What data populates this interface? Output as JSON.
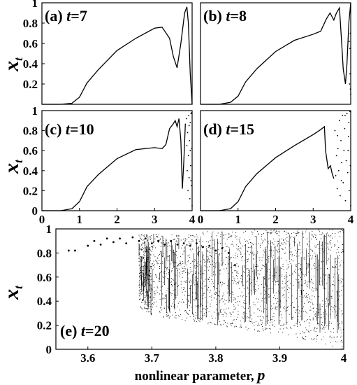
{
  "figure": {
    "xlabel": "nonlinear parameter, ",
    "xlabel_symbol": "p",
    "ylabel_main": "x",
    "ylabel_sub": "t"
  },
  "chart_data": [
    {
      "type": "line",
      "panel_id": "a",
      "label_prefix": "(a) ",
      "label_var": "t",
      "label_value": "=7",
      "xlim": [
        0,
        4
      ],
      "ylim": [
        0,
        1
      ],
      "x_ticks": [],
      "y_ticks": [
        "0.2",
        "0.4",
        "0.6",
        "0.8",
        "1"
      ],
      "x": [
        0,
        0.5,
        0.8,
        1.0,
        1.2,
        1.5,
        2.0,
        2.5,
        3.0,
        3.2,
        3.4,
        3.5,
        3.6,
        3.7,
        3.8,
        3.86,
        3.9,
        3.95,
        4.0
      ],
      "y": [
        0,
        0,
        0.01,
        0.07,
        0.21,
        0.34,
        0.53,
        0.65,
        0.75,
        0.76,
        0.65,
        0.47,
        0.36,
        0.6,
        0.9,
        0.96,
        0.8,
        0.3,
        0
      ]
    },
    {
      "type": "line",
      "panel_id": "b",
      "label_prefix": "(b) ",
      "label_var": "t",
      "label_value": "=8",
      "xlim": [
        0,
        4
      ],
      "ylim": [
        0,
        1
      ],
      "x_ticks": [],
      "y_ticks": [],
      "x": [
        0,
        0.5,
        0.8,
        1.0,
        1.2,
        1.5,
        2.0,
        2.5,
        3.0,
        3.2,
        3.35,
        3.45,
        3.55,
        3.62,
        3.7,
        3.76,
        3.8,
        3.86,
        3.9,
        3.95,
        4.0
      ],
      "y": [
        0,
        0,
        0.02,
        0.08,
        0.22,
        0.35,
        0.52,
        0.63,
        0.69,
        0.72,
        0.84,
        0.9,
        0.83,
        0.9,
        0.95,
        0.6,
        0.35,
        0.2,
        0.4,
        0.8,
        1.0
      ],
      "scatter": [
        [
          3.97,
          0.9
        ],
        [
          3.98,
          0.55
        ],
        [
          3.98,
          0.3
        ],
        [
          3.99,
          0.15
        ],
        [
          3.99,
          0.7
        ],
        [
          4.0,
          0.1
        ],
        [
          3.97,
          0.2
        ],
        [
          3.96,
          0.62
        ]
      ]
    },
    {
      "type": "line",
      "panel_id": "c",
      "label_prefix": "(c) ",
      "label_var": "t",
      "label_value": "=10",
      "xlim": [
        0,
        4
      ],
      "ylim": [
        0,
        1
      ],
      "x_ticks": [
        "0",
        "1",
        "2",
        "3",
        "4"
      ],
      "y_ticks": [
        "0",
        "0.2",
        "0.4",
        "0.6",
        "0.8",
        "1"
      ],
      "x": [
        0,
        0.5,
        0.8,
        1.0,
        1.2,
        1.5,
        2.0,
        2.5,
        3.0,
        3.2,
        3.3,
        3.4,
        3.5,
        3.55,
        3.6,
        3.65,
        3.7,
        3.74,
        3.78,
        3.82
      ],
      "y": [
        0,
        0,
        0.02,
        0.09,
        0.24,
        0.36,
        0.52,
        0.61,
        0.63,
        0.62,
        0.66,
        0.82,
        0.87,
        0.9,
        0.84,
        0.92,
        0.7,
        0.22,
        0.5,
        0.87
      ],
      "scatter": [
        [
          3.85,
          0.92
        ],
        [
          3.86,
          0.65
        ],
        [
          3.87,
          0.4
        ],
        [
          3.88,
          0.78
        ],
        [
          3.89,
          0.2
        ],
        [
          3.9,
          0.55
        ],
        [
          3.91,
          0.95
        ],
        [
          3.92,
          0.33
        ],
        [
          3.93,
          0.7
        ],
        [
          3.94,
          0.12
        ],
        [
          3.95,
          0.88
        ],
        [
          3.96,
          0.45
        ],
        [
          3.97,
          0.97
        ],
        [
          3.98,
          0.25
        ],
        [
          3.99,
          0.62
        ],
        [
          4.0,
          0.05
        ],
        [
          3.95,
          0.6
        ],
        [
          3.97,
          0.3
        ],
        [
          3.92,
          0.85
        ],
        [
          3.99,
          0.98
        ]
      ]
    },
    {
      "type": "line",
      "panel_id": "d",
      "label_prefix": "(d) ",
      "label_var": "t",
      "label_value": "=15",
      "xlim": [
        0,
        4
      ],
      "ylim": [
        0,
        1
      ],
      "x_ticks": [
        "0",
        "1",
        "2",
        "3",
        "4"
      ],
      "y_ticks": [],
      "x": [
        0,
        0.5,
        0.8,
        1.0,
        1.2,
        1.5,
        2.0,
        2.5,
        3.0,
        3.2,
        3.3,
        3.33,
        3.4,
        3.46,
        3.5,
        3.55
      ],
      "y": [
        0,
        0,
        0.02,
        0.09,
        0.24,
        0.37,
        0.53,
        0.65,
        0.76,
        0.81,
        0.84,
        0.6,
        0.42,
        0.45,
        0.38,
        0.32
      ],
      "scatter": [
        [
          3.58,
          0.8
        ],
        [
          3.6,
          0.35
        ],
        [
          3.62,
          0.55
        ],
        [
          3.64,
          0.22
        ],
        [
          3.66,
          0.62
        ],
        [
          3.68,
          0.4
        ],
        [
          3.7,
          0.9
        ],
        [
          3.72,
          0.15
        ],
        [
          3.74,
          0.7
        ],
        [
          3.76,
          0.48
        ],
        [
          3.78,
          0.95
        ],
        [
          3.8,
          0.28
        ],
        [
          3.82,
          0.6
        ],
        [
          3.84,
          0.82
        ],
        [
          3.86,
          0.1
        ],
        [
          3.88,
          0.5
        ],
        [
          3.9,
          0.97
        ],
        [
          3.92,
          0.38
        ],
        [
          3.94,
          0.74
        ],
        [
          3.96,
          0.2
        ],
        [
          3.98,
          0.99
        ],
        [
          4.0,
          0.05
        ],
        [
          3.85,
          0.95
        ],
        [
          3.75,
          0.3
        ],
        [
          3.95,
          0.88
        ],
        [
          3.65,
          0.75
        ],
        [
          3.99,
          0.45
        ],
        [
          3.93,
          0.6
        ]
      ]
    },
    {
      "type": "scatter",
      "panel_id": "e",
      "label_prefix": "(e) ",
      "label_var": "t",
      "label_value": "=20",
      "xlim": [
        3.55,
        4.0
      ],
      "ylim": [
        0,
        1
      ],
      "x_ticks": [
        "3.6",
        "3.7",
        "3.8",
        "3.9",
        "4"
      ],
      "y_ticks": [
        "0",
        "0.2",
        "0.4",
        "0.6",
        "0.8",
        "1"
      ],
      "x": [
        3.57,
        3.58,
        3.6,
        3.61,
        3.62,
        3.63,
        3.64,
        3.65,
        3.66,
        3.67,
        3.68,
        3.69,
        3.7,
        3.71,
        3.72,
        3.73,
        3.74,
        3.75,
        3.76,
        3.77,
        3.78,
        3.79,
        3.8,
        3.81,
        3.82,
        3.83
      ],
      "y": [
        0.82,
        0.82,
        0.86,
        0.9,
        0.87,
        0.92,
        0.89,
        0.92,
        0.88,
        0.93,
        0.9,
        0.92,
        0.88,
        0.9,
        0.87,
        0.9,
        0.87,
        0.88,
        0.86,
        0.88,
        0.85,
        0.86,
        0.82,
        0.84,
        0.8,
        0.7
      ],
      "envelope": {
        "x": [
          3.68,
          3.7,
          3.75,
          3.8,
          3.85,
          3.9,
          3.95,
          4.0
        ],
        "lower": [
          0.35,
          0.28,
          0.24,
          0.2,
          0.16,
          0.12,
          0.07,
          0.0
        ],
        "upper": [
          0.95,
          0.96,
          0.97,
          0.98,
          0.99,
          1.0,
          1.0,
          1.0
        ]
      }
    }
  ]
}
